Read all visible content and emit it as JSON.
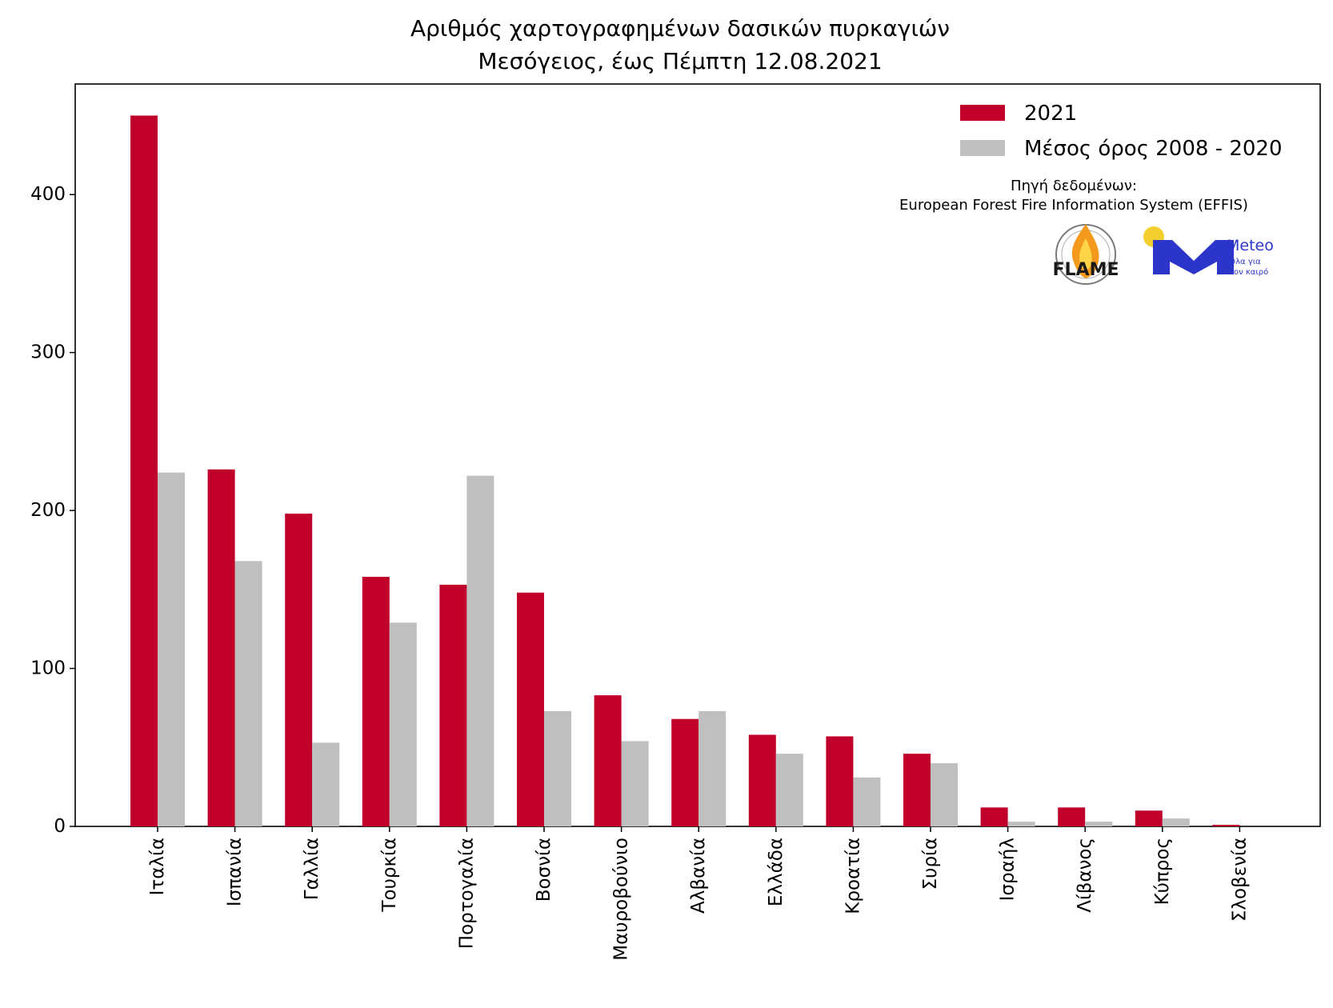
{
  "chart_data": {
    "type": "bar",
    "title": "Αριθμός χαρτογραφημένων δασικών πυρκαγιών",
    "subtitle": "Μεσόγειος, έως Πέμπτη 12.08.2021",
    "xlabel": "",
    "ylabel": "",
    "ylim": [
      0,
      470
    ],
    "yticks": [
      0,
      100,
      200,
      300,
      400
    ],
    "grid": false,
    "legend_position": "top-right",
    "categories": [
      "Ιταλία",
      "Ισπανία",
      "Γαλλία",
      "Τουρκία",
      "Πορτογαλία",
      "Βοσνία",
      "Μαυροβούνιο",
      "Αλβανία",
      "Ελλάδα",
      "Κροατία",
      "Συρία",
      "Ισραήλ",
      "Λίβανος",
      "Κύπρος",
      "Σλοβενία"
    ],
    "series": [
      {
        "name": "2021",
        "color": "#c0002a",
        "values": [
          450,
          226,
          198,
          158,
          153,
          148,
          83,
          68,
          58,
          57,
          46,
          12,
          12,
          10,
          1
        ]
      },
      {
        "name": "Μέσος όρος 2008 - 2020",
        "color": "#bfbfbf",
        "values": [
          224,
          168,
          53,
          129,
          222,
          73,
          54,
          73,
          46,
          31,
          40,
          3,
          3,
          5,
          0
        ]
      }
    ],
    "source_label": "Πηγή δεδομένων:",
    "source_name": "European Forest Fire Information System (EFFIS)"
  },
  "logos": {
    "flame": {
      "text": "FLAME",
      "ring_text": "EXTREME FIRE WEATHER & FIRE BEHAVIOUR"
    },
    "meteo": {
      "name": "Meteo",
      "tagline_1": "Όλα για",
      "tagline_2": "τον καιρό",
      "accent": "#2b35c9",
      "sun": "#f2cf2e"
    }
  }
}
